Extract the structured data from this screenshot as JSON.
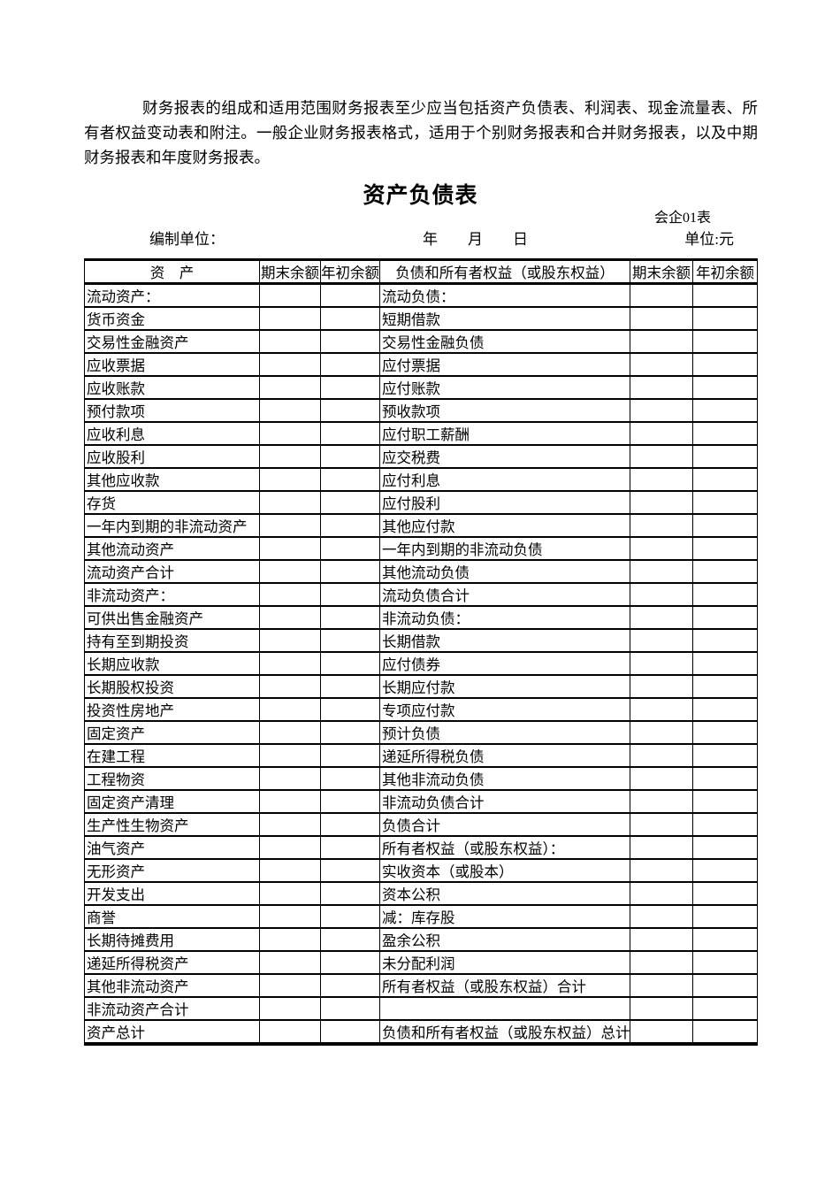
{
  "intro": {
    "text": "财务报表的组成和适用范围财务报表至少应当包括资产负债表、利润表、现金流量表、所有者权益变动表和附注。一般企业财务报表格式，适用于个别财务报表和合并财务报表，以及中期财务报表和年度财务报表。"
  },
  "title": "资产负债表",
  "form_code": "会企01表",
  "meta": {
    "prepared_by": "编制单位：",
    "date": "年　　月　　日",
    "unit": "单位:元"
  },
  "table": {
    "headers": {
      "asset": "资　产",
      "ending_balance": "期末余额",
      "beginning_balance": "年初余额",
      "liability": "负债和所有者权益（或股东权益）",
      "ending_balance_2": "期末余额",
      "beginning_balance_2": "年初余额"
    },
    "rows": [
      {
        "asset": "流动资产：",
        "liability": "流动负债："
      },
      {
        "asset": "货币资金",
        "liability": "短期借款"
      },
      {
        "asset": "交易性金融资产",
        "liability": "交易性金融负债"
      },
      {
        "asset": "应收票据",
        "liability": "应付票据"
      },
      {
        "asset": "应收账款",
        "liability": "应付账款"
      },
      {
        "asset": "预付款项",
        "liability": "预收款项"
      },
      {
        "asset": "应收利息",
        "liability": "应付职工薪酬"
      },
      {
        "asset": "应收股利",
        "liability": "应交税费"
      },
      {
        "asset": "其他应收款",
        "liability": "应付利息"
      },
      {
        "asset": "存货",
        "liability": "应付股利"
      },
      {
        "asset": "一年内到期的非流动资产",
        "liability": "其他应付款"
      },
      {
        "asset": "其他流动资产",
        "liability": "一年内到期的非流动负债"
      },
      {
        "asset": "流动资产合计",
        "liability": "其他流动负债"
      },
      {
        "asset": "非流动资产：",
        "liability": "流动负债合计"
      },
      {
        "asset": "可供出售金融资产",
        "liability": "非流动负债："
      },
      {
        "asset": "持有至到期投资",
        "liability": "长期借款"
      },
      {
        "asset": "长期应收款",
        "liability": "应付债券"
      },
      {
        "asset": "长期股权投资",
        "liability": "长期应付款"
      },
      {
        "asset": "投资性房地产",
        "liability": "专项应付款"
      },
      {
        "asset": "固定资产",
        "liability": "预计负债"
      },
      {
        "asset": "在建工程",
        "liability": "递延所得税负债"
      },
      {
        "asset": "工程物资",
        "liability": "其他非流动负债"
      },
      {
        "asset": "固定资产清理",
        "liability": "非流动负债合计"
      },
      {
        "asset": "生产性生物资产",
        "liability": "负债合计"
      },
      {
        "asset": "油气资产",
        "liability": "所有者权益（或股东权益）："
      },
      {
        "asset": "无形资产",
        "liability": "实收资本（或股本）"
      },
      {
        "asset": "开发支出",
        "liability": "资本公积"
      },
      {
        "asset": "商誉",
        "liability": "减：库存股"
      },
      {
        "asset": "长期待摊费用",
        "liability": "盈余公积"
      },
      {
        "asset": "递延所得税资产",
        "liability": "未分配利润"
      },
      {
        "asset": "其他非流动资产",
        "liability": "所有者权益（或股东权益）合计"
      },
      {
        "asset": "非流动资产合计",
        "liability": ""
      },
      {
        "asset": "资产总计",
        "liability": "负债和所有者权益（或股东权益）总计"
      }
    ]
  }
}
